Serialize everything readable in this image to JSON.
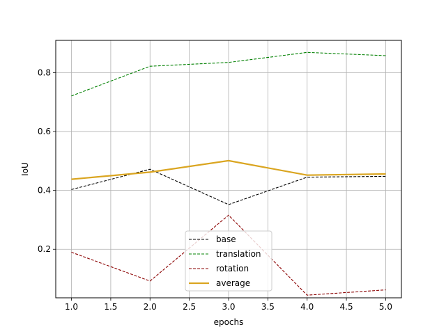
{
  "chart_data": {
    "type": "line",
    "title": "",
    "xlabel": "epochs",
    "ylabel": "IoU",
    "x": [
      1.0,
      2.0,
      3.0,
      4.0,
      5.0
    ],
    "xlim": [
      0.8,
      5.2
    ],
    "ylim": [
      0.035,
      0.91
    ],
    "xticks": [
      1.0,
      1.5,
      2.0,
      2.5,
      3.0,
      3.5,
      4.0,
      4.5,
      5.0
    ],
    "xtick_labels": [
      "1.0",
      "1.5",
      "2.0",
      "2.5",
      "3.0",
      "3.5",
      "4.0",
      "4.5",
      "5.0"
    ],
    "yticks": [
      0.2,
      0.4,
      0.6,
      0.8
    ],
    "ytick_labels": [
      "0.2",
      "0.4",
      "0.6",
      "0.8"
    ],
    "grid": true,
    "legend_position": "lower center",
    "series": [
      {
        "name": "base",
        "values": [
          0.403,
          0.472,
          0.352,
          0.445,
          0.448
        ],
        "color": "#000000",
        "style": "dashed"
      },
      {
        "name": "translation",
        "values": [
          0.721,
          0.822,
          0.835,
          0.869,
          0.858
        ],
        "color": "#008000",
        "style": "dashed"
      },
      {
        "name": "rotation",
        "values": [
          0.19,
          0.092,
          0.316,
          0.044,
          0.062
        ],
        "color": "#8b0000",
        "style": "dashed"
      },
      {
        "name": "average",
        "values": [
          0.438,
          0.462,
          0.501,
          0.452,
          0.456
        ],
        "color": "#daa520",
        "style": "solid"
      }
    ]
  }
}
